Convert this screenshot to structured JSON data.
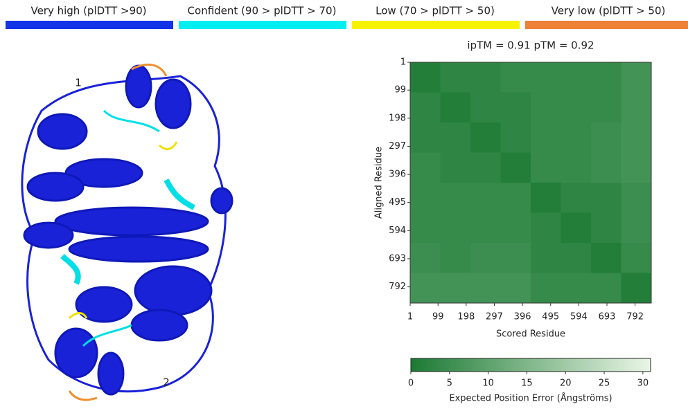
{
  "legend": [
    {
      "label": "Very high (plDTT >90)",
      "color": "#1433e6"
    },
    {
      "label": "Confident (90 > plDTT > 70)",
      "color": "#00eef2"
    },
    {
      "label": "Low (70 > plDTT > 50)",
      "color": "#f6f200"
    },
    {
      "label": "Very low (plDTT > 50)",
      "color": "#ee8038"
    }
  ],
  "structure": {
    "labels": [
      "1",
      "2"
    ]
  },
  "chart_data": {
    "type": "heatmap",
    "title": "ipTM = 0.91  pTM = 0.92",
    "x_label": "Scored Residue",
    "y_label": "Aligned Residue",
    "xlim": [
      1,
      849
    ],
    "ylim": [
      1,
      849
    ],
    "xticks": [
      1,
      99,
      198,
      297,
      396,
      495,
      594,
      693,
      792
    ],
    "yticks": [
      1,
      99,
      198,
      297,
      396,
      495,
      594,
      693,
      792
    ],
    "z": [
      [
        1,
        3,
        3,
        4,
        4,
        4,
        4,
        6
      ],
      [
        3,
        1,
        3,
        3,
        4,
        4,
        4,
        6
      ],
      [
        3,
        3,
        1,
        3,
        4,
        4,
        5,
        6
      ],
      [
        4,
        3,
        3,
        1,
        4,
        4,
        5,
        6
      ],
      [
        4,
        4,
        4,
        4,
        1,
        3,
        3,
        5
      ],
      [
        4,
        4,
        4,
        4,
        3,
        1,
        3,
        5
      ],
      [
        5,
        4,
        5,
        5,
        3,
        3,
        1,
        4
      ],
      [
        6,
        6,
        6,
        6,
        4,
        4,
        4,
        1
      ]
    ],
    "colorbar": {
      "label": "Expected Position Error (Ångströms)",
      "lim": [
        0,
        31
      ],
      "ticks": [
        0,
        5,
        10,
        15,
        20,
        25,
        30
      ],
      "colors": [
        "#1b7a33",
        "#eaf6e6"
      ]
    }
  }
}
